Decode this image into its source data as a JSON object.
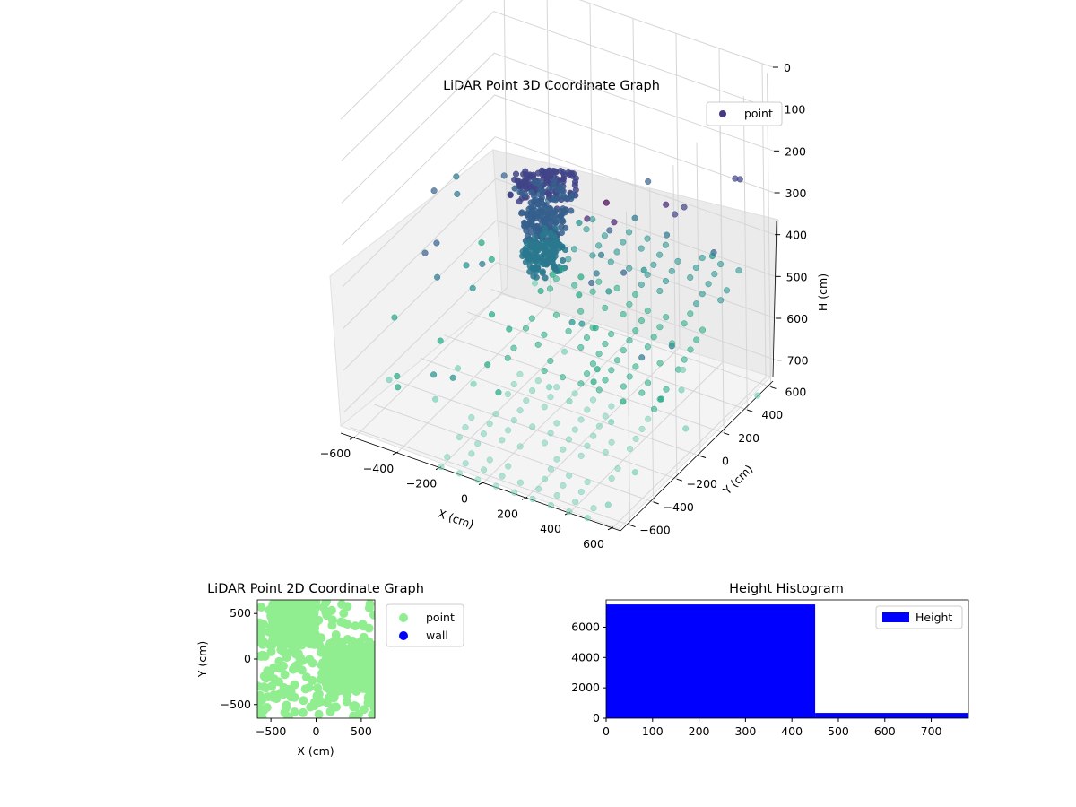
{
  "chart_data": [
    {
      "type": "scatter3d",
      "title": "LiDAR Point 3D Coordinate Graph",
      "xlabel": "X (cm)",
      "ylabel": "Y (cm)",
      "zlabel": "H (cm)",
      "xlim": [
        -650,
        650
      ],
      "ylim": [
        -650,
        650
      ],
      "zlim": [
        750,
        0
      ],
      "x_ticks": [
        -600,
        -400,
        -200,
        0,
        200,
        400,
        600
      ],
      "y_ticks": [
        -600,
        -400,
        -200,
        0,
        200,
        400,
        600
      ],
      "z_ticks": [
        0,
        100,
        200,
        300,
        400,
        500,
        600,
        700
      ],
      "colormap": [
        "#440154",
        "#3b528b",
        "#21918c",
        "#5ec962",
        "#9fe0c8"
      ],
      "legend": {
        "position": "top-right",
        "entries": [
          {
            "label": "point",
            "color": "#443983"
          }
        ]
      },
      "grid": true,
      "series": [
        {
          "name": "point",
          "description_of_distribution": "tree-like cluster near x≈-150,y≈50 for H 0–450; floor rows for H 450–750",
          "clusters": [
            {
              "x_center": -120,
              "y_center": 80,
              "h_range": [
                0,
                120
              ],
              "spread": 220
            },
            {
              "x_center": -100,
              "y_center": 60,
              "h_range": [
                120,
                300
              ],
              "spread": 140
            },
            {
              "x_center": -90,
              "y_center": 40,
              "h_range": [
                300,
                450
              ],
              "spread": 90
            }
          ],
          "floor_rows": {
            "h_range": [
              480,
              750
            ],
            "x_range": [
              -200,
              650
            ],
            "y_range": [
              -650,
              650
            ]
          }
        }
      ]
    },
    {
      "type": "scatter",
      "title": "LiDAR Point 2D Coordinate Graph",
      "xlabel": "X (cm)",
      "ylabel": "Y (cm)",
      "xlim": [
        -650,
        650
      ],
      "ylim": [
        -650,
        650
      ],
      "x_ticks": [
        -500,
        0,
        500
      ],
      "y_ticks": [
        -500,
        0,
        500
      ],
      "legend": {
        "position": "outside-right",
        "entries": [
          {
            "label": "point",
            "color": "#90ee90"
          },
          {
            "label": "wall",
            "color": "#0000ff"
          }
        ]
      },
      "series": [
        {
          "name": "point",
          "color": "#90ee90"
        },
        {
          "name": "wall",
          "color": "#0000ff",
          "values": []
        }
      ]
    },
    {
      "type": "bar",
      "title": "Height Histogram",
      "xlim": [
        0,
        780
      ],
      "ylim": [
        0,
        7800
      ],
      "x_ticks": [
        0,
        100,
        200,
        300,
        400,
        500,
        600,
        700
      ],
      "y_ticks": [
        0,
        2000,
        4000,
        6000
      ],
      "legend": {
        "position": "top-right",
        "entries": [
          {
            "label": "Height",
            "color": "#0000ff"
          }
        ]
      },
      "bins": [
        {
          "x0": 0,
          "x1": 450,
          "count": 7500
        },
        {
          "x0": 450,
          "x1": 780,
          "count": 350
        }
      ],
      "color": "#0000ff"
    }
  ]
}
